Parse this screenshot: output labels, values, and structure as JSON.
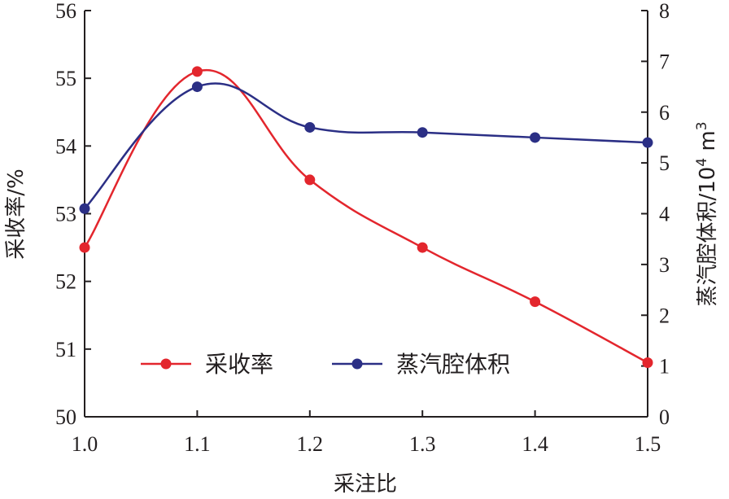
{
  "chart_data": {
    "type": "line",
    "xlabel": "采注比",
    "ylabel_left": "采收率/%",
    "ylabel_right": {
      "main": "蒸汽腔体积/10",
      "exp1": "4",
      "unit": " m",
      "exp2": "3"
    },
    "x": [
      1.0,
      1.1,
      1.2,
      1.3,
      1.4,
      1.5
    ],
    "x_ticks": [
      "1.0",
      "1.1",
      "1.2",
      "1.3",
      "1.4",
      "1.5"
    ],
    "xlim": [
      1.0,
      1.5
    ],
    "ylim_left": [
      50,
      56
    ],
    "y_ticks_left": [
      "50",
      "51",
      "52",
      "53",
      "54",
      "55",
      "56"
    ],
    "ylim_right": [
      0,
      8
    ],
    "y_ticks_right": [
      "0",
      "1",
      "2",
      "3",
      "4",
      "5",
      "6",
      "7",
      "8"
    ],
    "grid": false,
    "legend_position": "bottom-center",
    "series": [
      {
        "name": "采收率",
        "axis": "left",
        "color": "#e3262d",
        "values": [
          52.5,
          55.1,
          53.5,
          52.5,
          51.7,
          50.8
        ]
      },
      {
        "name": "蒸汽腔体积",
        "axis": "right",
        "color": "#2b2f85",
        "values": [
          4.1,
          6.5,
          5.7,
          5.6,
          5.5,
          5.4
        ]
      }
    ]
  }
}
